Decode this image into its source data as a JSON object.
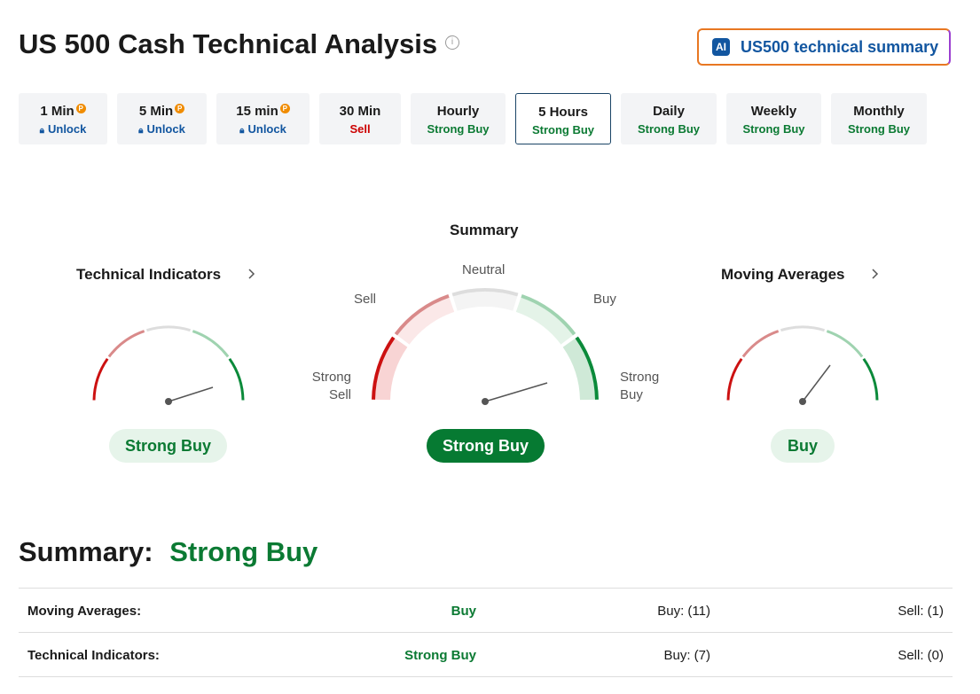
{
  "header": {
    "title": "US 500 Cash Technical Analysis",
    "ai_badge": "AI",
    "ai_button": "US500 technical summary"
  },
  "timeframes": [
    {
      "label": "1 Min",
      "status": "Unlock"
    },
    {
      "label": "5 Min",
      "status": "Unlock"
    },
    {
      "label": "15 min",
      "status": "Unlock"
    },
    {
      "label": "30 Min",
      "status": "Sell"
    },
    {
      "label": "Hourly",
      "status": "Strong Buy"
    },
    {
      "label": "5 Hours",
      "status": "Strong Buy"
    },
    {
      "label": "Daily",
      "status": "Strong Buy"
    },
    {
      "label": "Weekly",
      "status": "Strong Buy"
    },
    {
      "label": "Monthly",
      "status": "Strong Buy"
    }
  ],
  "gauges": {
    "technical": {
      "title": "Technical Indicators",
      "result": "Strong Buy"
    },
    "summary": {
      "title": "Summary",
      "result": "Strong Buy",
      "scale": {
        "strong_sell": "Strong Sell",
        "sell": "Sell",
        "neutral": "Neutral",
        "buy": "Buy",
        "strong_buy": "Strong Buy"
      }
    },
    "moving_averages": {
      "title": "Moving Averages",
      "result": "Buy"
    }
  },
  "summary": {
    "label": "Summary:",
    "value": "Strong Buy"
  },
  "table": {
    "rows": [
      [
        "Moving Averages:",
        "Buy",
        "Buy: (11)",
        "Sell: (1)"
      ],
      [
        "Technical Indicators:",
        "Strong Buy",
        "Buy: (7)",
        "Sell: (0)"
      ]
    ]
  }
}
